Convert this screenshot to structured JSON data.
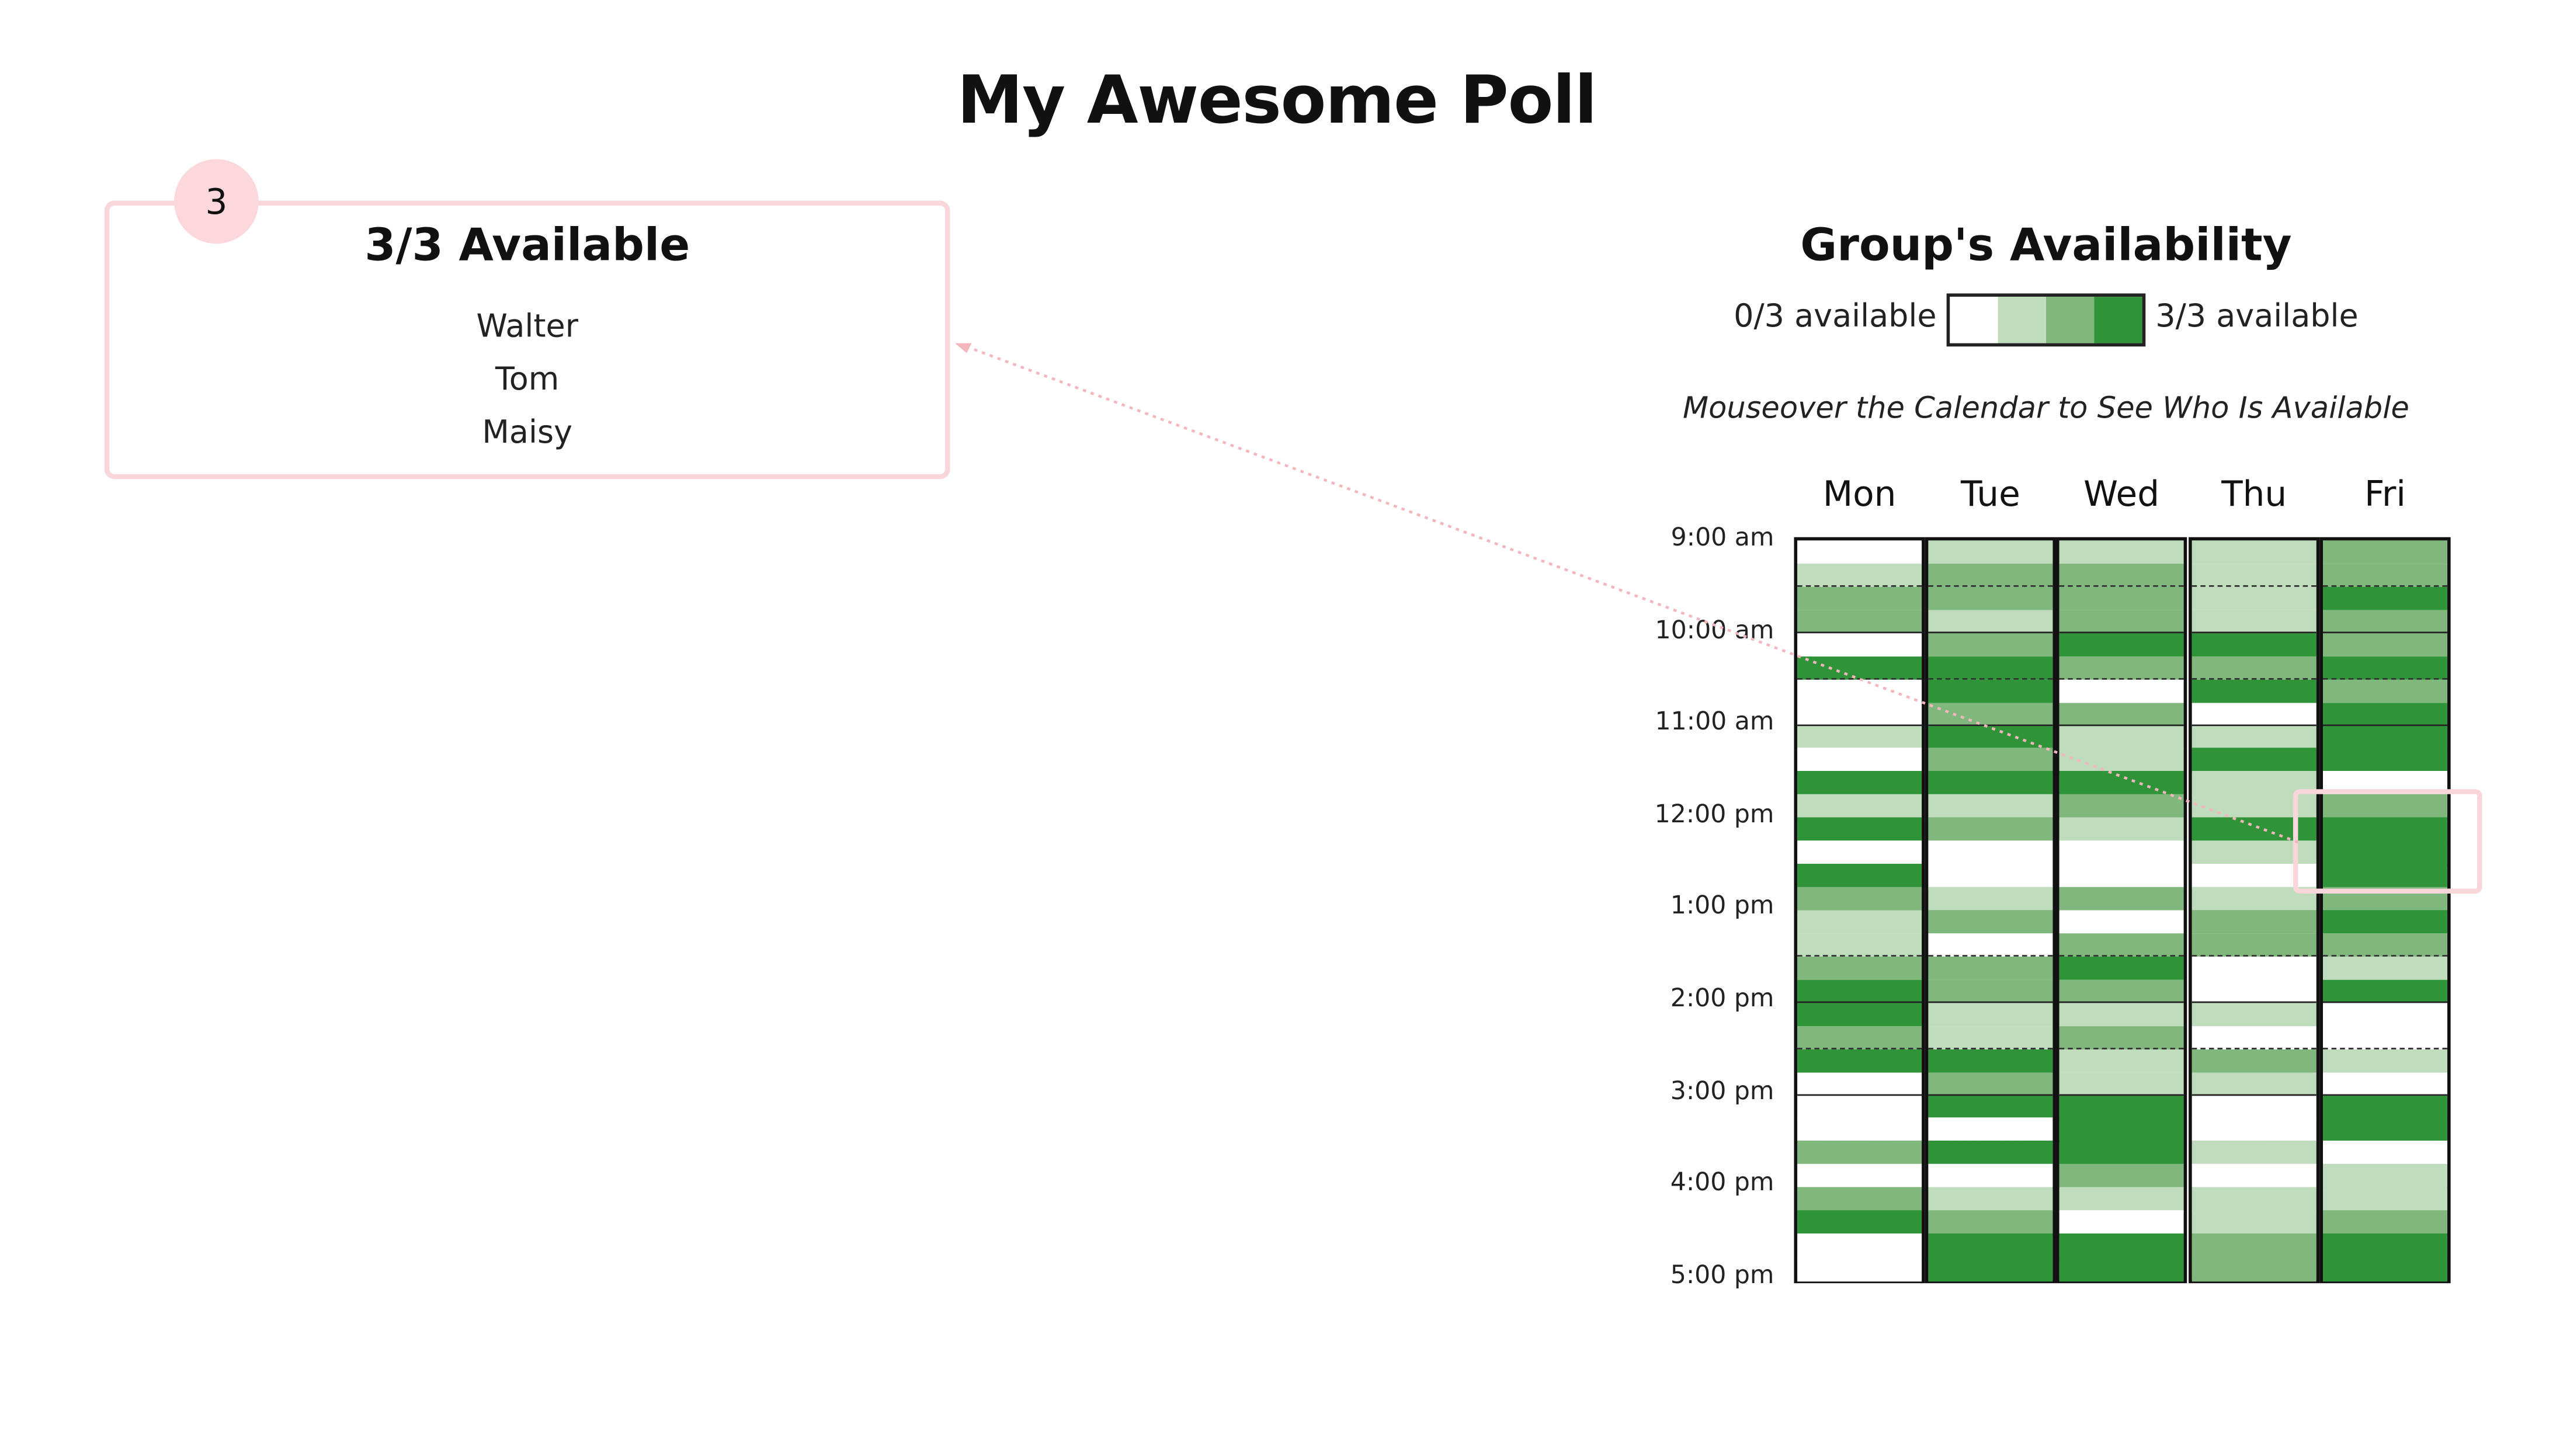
{
  "poll": {
    "title": "My Awesome Poll"
  },
  "availability_panel": {
    "count_badge": "3",
    "title": "3/3 Available",
    "names": [
      "Walter",
      "Tom",
      "Maisy"
    ]
  },
  "group": {
    "title": "Group's Availability",
    "legend_low": "0/3 available",
    "legend_high": "3/3 available",
    "legend_colors": [
      "#ffffff",
      "#bfdcbd",
      "#7fb77c",
      "#2f9438"
    ],
    "instruction": "Mouseover the Calendar to See Who Is Available"
  },
  "calendar": {
    "days": [
      "Mon",
      "Tue",
      "Wed",
      "Thu",
      "Fri"
    ],
    "times": [
      "9:00 am",
      "10:00 am",
      "11:00 am",
      "12:00 pm",
      "1:00 pm",
      "2:00 pm",
      "3:00 pm",
      "4:00 pm",
      "5:00 pm"
    ],
    "max_available": 3,
    "availability_by_day": [
      [
        0,
        1,
        2,
        2,
        0,
        3,
        0,
        0,
        1,
        0,
        3,
        1,
        3,
        0,
        3,
        2,
        1,
        1,
        2,
        3,
        3,
        2,
        3,
        0,
        0,
        0,
        2,
        0,
        2,
        3,
        0,
        0
      ],
      [
        1,
        2,
        2,
        1,
        2,
        3,
        3,
        2,
        3,
        2,
        3,
        1,
        2,
        0,
        0,
        1,
        2,
        0,
        2,
        2,
        1,
        1,
        3,
        2,
        3,
        0,
        3,
        0,
        1,
        2,
        3,
        3
      ],
      [
        1,
        2,
        2,
        2,
        3,
        2,
        0,
        2,
        1,
        1,
        3,
        2,
        1,
        0,
        0,
        2,
        0,
        2,
        3,
        2,
        1,
        2,
        1,
        1,
        3,
        3,
        3,
        2,
        1,
        0,
        3,
        3
      ],
      [
        1,
        1,
        1,
        1,
        3,
        2,
        3,
        0,
        1,
        3,
        1,
        1,
        3,
        1,
        0,
        1,
        2,
        2,
        0,
        0,
        1,
        0,
        2,
        1,
        0,
        0,
        1,
        0,
        1,
        1,
        2,
        2
      ],
      [
        2,
        2,
        3,
        2,
        2,
        3,
        2,
        3,
        3,
        3,
        0,
        2,
        3,
        3,
        3,
        2,
        3,
        2,
        1,
        3,
        0,
        0,
        1,
        0,
        3,
        3,
        0,
        1,
        1,
        2,
        3,
        3
      ]
    ],
    "highlight": {
      "day": "Fri",
      "time": "12:00 pm",
      "available": 3
    }
  }
}
